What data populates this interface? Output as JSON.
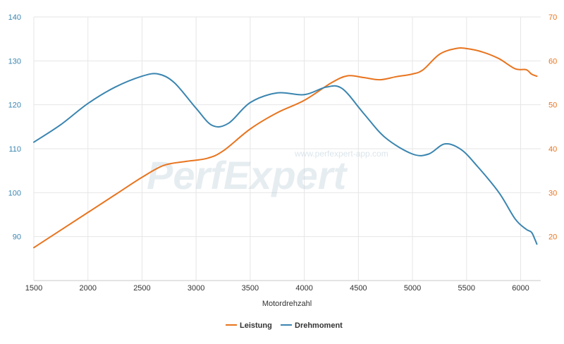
{
  "chart_data": {
    "type": "line",
    "xlabel": "Motordrehzahl",
    "x_ticks": [
      1500,
      2000,
      2500,
      3000,
      3500,
      4000,
      4500,
      5000,
      5500,
      6000
    ],
    "xlim": [
      1500,
      6200
    ],
    "y_left": {
      "ylim": [
        80,
        140
      ],
      "ticks": [
        90,
        100,
        110,
        120,
        130,
        140
      ],
      "color": "#3a85b0"
    },
    "y_right": {
      "ylim": [
        10,
        70
      ],
      "ticks": [
        20,
        30,
        40,
        50,
        60,
        70
      ],
      "color": "#e8741e"
    },
    "watermark": {
      "logo": "PerfExpert",
      "url": "www.perfexpert-app.com"
    },
    "series": [
      {
        "name": "Leistung",
        "axis": "right",
        "color": "#e8741e",
        "points": [
          [
            1500,
            17.5
          ],
          [
            1750,
            21.5
          ],
          [
            2000,
            25.5
          ],
          [
            2250,
            29.5
          ],
          [
            2500,
            33.5
          ],
          [
            2700,
            36.2
          ],
          [
            2900,
            37.1
          ],
          [
            3100,
            37.8
          ],
          [
            3250,
            39.5
          ],
          [
            3500,
            44.5
          ],
          [
            3750,
            48.2
          ],
          [
            4000,
            51
          ],
          [
            4250,
            55
          ],
          [
            4400,
            56.6
          ],
          [
            4550,
            56.2
          ],
          [
            4700,
            55.7
          ],
          [
            4850,
            56.4
          ],
          [
            5000,
            57
          ],
          [
            5100,
            58
          ],
          [
            5250,
            61.5
          ],
          [
            5400,
            62.8
          ],
          [
            5500,
            62.8
          ],
          [
            5650,
            62
          ],
          [
            5800,
            60.5
          ],
          [
            5950,
            58.2
          ],
          [
            6050,
            58
          ],
          [
            6100,
            57
          ],
          [
            6150,
            56.5
          ]
        ]
      },
      {
        "name": "Drehmoment",
        "axis": "left",
        "color": "#3a85b0",
        "points": [
          [
            1500,
            111.5
          ],
          [
            1750,
            115.5
          ],
          [
            2000,
            120.3
          ],
          [
            2250,
            124
          ],
          [
            2500,
            126.5
          ],
          [
            2650,
            127
          ],
          [
            2800,
            125
          ],
          [
            3000,
            119.2
          ],
          [
            3150,
            115.3
          ],
          [
            3300,
            115.8
          ],
          [
            3500,
            120.5
          ],
          [
            3750,
            122.7
          ],
          [
            4000,
            122.3
          ],
          [
            4200,
            124
          ],
          [
            4350,
            123.7
          ],
          [
            4550,
            118
          ],
          [
            4750,
            112.5
          ],
          [
            5000,
            108.8
          ],
          [
            5150,
            108.8
          ],
          [
            5300,
            111.1
          ],
          [
            5450,
            109.8
          ],
          [
            5600,
            106
          ],
          [
            5800,
            100
          ],
          [
            5950,
            94
          ],
          [
            6050,
            91.7
          ],
          [
            6100,
            91
          ],
          [
            6130,
            89.5
          ],
          [
            6150,
            88.3
          ]
        ]
      }
    ]
  }
}
